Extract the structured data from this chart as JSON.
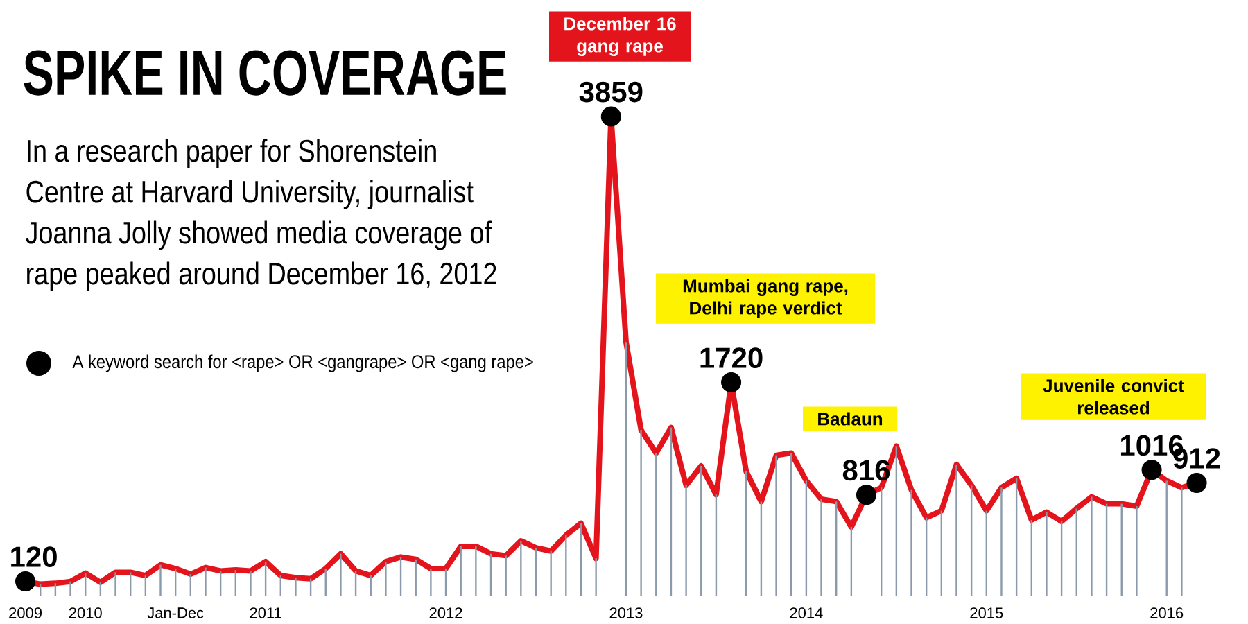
{
  "chart_data": {
    "type": "line",
    "title": "SPIKE IN COVERAGE",
    "subtitle": "In a research paper for Shorenstein Centre at Harvard University, journalist Joanna Jolly showed media coverage of rape peaked around December 16, 2012",
    "categories": [
      "2009",
      null,
      null,
      null,
      "2010",
      null,
      null,
      null,
      null,
      null,
      "Jan-Dec",
      null,
      null,
      null,
      null,
      null,
      "2011",
      null,
      null,
      null,
      null,
      null,
      null,
      null,
      null,
      null,
      null,
      null,
      "2012",
      null,
      null,
      null,
      null,
      null,
      null,
      null,
      null,
      null,
      null,
      null,
      "2013",
      null,
      null,
      null,
      null,
      null,
      null,
      null,
      null,
      null,
      null,
      null,
      "2014",
      null,
      null,
      null,
      null,
      null,
      null,
      null,
      null,
      null,
      null,
      null,
      "2015",
      null,
      null,
      null,
      null,
      null,
      null,
      null,
      null,
      null,
      null,
      null,
      "2016",
      null,
      null
    ],
    "series": [
      {
        "type": "bar",
        "color": "#8a9aaa",
        "values": [
          null,
          97,
          104,
          119,
          186,
          112,
          193,
          193,
          167,
          253,
          223,
          178,
          231,
          204,
          212,
          204,
          279,
          167,
          149,
          141,
          223,
          342,
          204,
          167,
          279,
          316,
          297,
          223,
          223,
          402,
          402,
          342,
          327,
          446,
          390,
          364,
          491,
          587,
          305,
          null,
          2045,
          1338,
          1152,
          1357,
          892,
          1048,
          818,
          null,
          1004,
          762,
          1134,
          1152,
          929,
          781,
          762,
          558,
          null,
          874,
          1208,
          855,
          632,
          688,
          1060,
          892,
          688,
          874,
          948,
          613,
          677,
          602,
          706,
          800,
          744,
          744,
          725,
          null,
          929,
          874,
          null
        ]
      },
      {
        "color": "#e3141b",
        "values": [
          120,
          97,
          104,
          119,
          186,
          112,
          193,
          193,
          167,
          253,
          223,
          178,
          231,
          204,
          212,
          204,
          279,
          167,
          149,
          141,
          223,
          342,
          204,
          167,
          279,
          316,
          297,
          223,
          223,
          402,
          402,
          342,
          327,
          446,
          390,
          364,
          491,
          587,
          305,
          3859,
          2045,
          1338,
          1152,
          1357,
          892,
          1048,
          818,
          1720,
          1004,
          762,
          1134,
          1152,
          929,
          781,
          762,
          558,
          816,
          874,
          1208,
          855,
          632,
          688,
          1060,
          892,
          688,
          874,
          948,
          613,
          677,
          602,
          706,
          800,
          744,
          744,
          725,
          1016,
          929,
          874,
          912
        ],
        "value_labels": [
          "120",
          null,
          null,
          null,
          null,
          null,
          null,
          null,
          null,
          null,
          null,
          null,
          null,
          null,
          null,
          null,
          null,
          null,
          null,
          null,
          null,
          null,
          null,
          null,
          null,
          null,
          null,
          null,
          null,
          null,
          null,
          null,
          null,
          null,
          null,
          null,
          null,
          null,
          null,
          "3859",
          null,
          null,
          null,
          null,
          null,
          null,
          null,
          "1720",
          null,
          null,
          null,
          null,
          null,
          null,
          null,
          null,
          "816",
          null,
          null,
          null,
          null,
          null,
          null,
          null,
          null,
          null,
          null,
          null,
          null,
          null,
          null,
          null,
          null,
          null,
          null,
          "1016",
          null,
          null,
          "912"
        ]
      }
    ],
    "tick_labels": "x",
    "annotations": [
      "December 16 gang rape",
      "Mumbai gang rape, Delhi rape verdict",
      "Badaun",
      "Juvenile convict released",
      "A keyword search for <rape> OR <gangrape> OR <gang rape>"
    ]
  }
}
